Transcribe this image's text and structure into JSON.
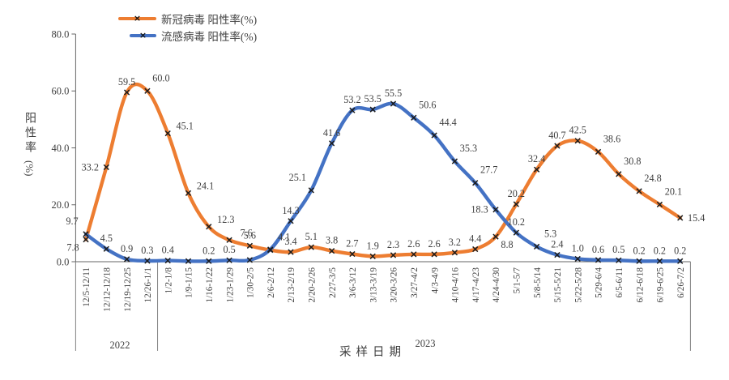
{
  "chart_data": {
    "type": "line",
    "smoothed": true,
    "grid": false,
    "marker": "x",
    "marker_color": "#1c1c1c",
    "legend_position": "top-left",
    "x_axis": {
      "label": "采样日期",
      "year_groups": [
        {
          "label": "2022",
          "span": [
            0,
            3
          ]
        },
        {
          "label": "2023",
          "span": [
            4,
            29
          ]
        }
      ]
    },
    "y_axis": {
      "label": "阳性率",
      "unit": "(%)",
      "range": [
        0,
        80
      ],
      "tick_values": [
        0,
        20,
        40,
        60,
        80
      ],
      "tick_labels": [
        "0.0",
        "20.0",
        "40.0",
        "60.0",
        "80.0"
      ]
    },
    "categories": [
      "12/5-12/11",
      "12/12-12/18",
      "12/19-12/25",
      "12/26-1/1",
      "1/2-1/8",
      "1/9-1/15",
      "1/16-1/22",
      "1/23-1/29",
      "1/30-2/5",
      "2/6-2/12",
      "2/13-2/19",
      "2/20-2/26",
      "2/27-3/5",
      "3/6-3/12",
      "3/13-3/19",
      "3/20-3/26",
      "3/27-4/2",
      "4/3-4/9",
      "4/10-4/16",
      "4/17-4/23",
      "4/24-4/30",
      "5/1-5/7",
      "5/8-5/14",
      "5/15-5/21",
      "5/22-5/28",
      "5/29-6/4",
      "6/5-6/11",
      "6/12-6/18",
      "6/19-6/25",
      "6/26-7/2"
    ],
    "series": [
      {
        "name": "新冠病毒 阳性率(%)",
        "color": "#ED7D31",
        "values": [
          7.8,
          33.2,
          59.5,
          60.0,
          45.1,
          24.1,
          12.3,
          7.6,
          5.6,
          4.1,
          3.4,
          5.1,
          3.8,
          2.7,
          1.9,
          2.3,
          2.6,
          2.6,
          3.2,
          4.4,
          8.8,
          20.2,
          32.4,
          40.7,
          42.5,
          38.6,
          30.8,
          24.8,
          20.1,
          15.4
        ],
        "labels": [
          "7.8",
          "33.2",
          "59.5",
          "60.0",
          "45.1",
          "24.1",
          "12.3",
          "7.6",
          "5.6",
          "4.1",
          "3.4",
          "5.1",
          "3.8",
          "2.7",
          "1.9",
          "2.3",
          "2.6",
          "2.6",
          "3.2",
          "4.4",
          "8.8",
          "20.2",
          "32.4",
          "40.7",
          "42.5",
          "38.6",
          "30.8",
          "24.8",
          "20.1",
          "15.4"
        ],
        "label_pos": [
          "below-left",
          "left",
          "above",
          "above-right",
          "right-up",
          "right-up",
          "right-up",
          "right-up",
          "above",
          "above-right",
          "above",
          "above",
          "above",
          "above",
          "above",
          "above",
          "above",
          "above",
          "above",
          "above",
          "below-right",
          "above",
          "above",
          "above",
          "above",
          "above-right",
          "above-right",
          "above-right",
          "above-right",
          "right"
        ]
      },
      {
        "name": "流感病毒 阳性率(%)",
        "color": "#4472C4",
        "values": [
          9.7,
          4.5,
          0.9,
          0.3,
          0.4,
          0.2,
          0.2,
          0.5,
          0.6,
          4.3,
          14.3,
          25.1,
          41.6,
          53.2,
          53.5,
          55.5,
          50.6,
          44.4,
          35.3,
          27.7,
          18.3,
          10.2,
          5.3,
          2.4,
          1.0,
          0.6,
          0.5,
          0.2,
          0.2,
          0.2
        ],
        "labels": [
          "9.7",
          "4.5",
          "0.9",
          "0.3",
          "0.4",
          "",
          "0.2",
          "0.5",
          "",
          "",
          "14.3",
          "25.1",
          "41.6",
          "53.2",
          "53.5",
          "55.5",
          "50.6",
          "44.4",
          "35.3",
          "27.7",
          "18.3",
          "10.2",
          "5.3",
          "2.4",
          "1.0",
          "0.6",
          "0.5",
          "0.2",
          "0.2",
          "0.2"
        ],
        "label_pos": [
          "above-left",
          "above",
          "above",
          "above",
          "above",
          "",
          "above",
          "above",
          "",
          "",
          "above",
          "above-left",
          "above",
          "above",
          "above",
          "above",
          "above-right",
          "above-right",
          "above-right",
          "above-right",
          "left",
          "above",
          "above-right",
          "above",
          "above",
          "above",
          "above",
          "above",
          "above",
          "above"
        ]
      }
    ]
  }
}
